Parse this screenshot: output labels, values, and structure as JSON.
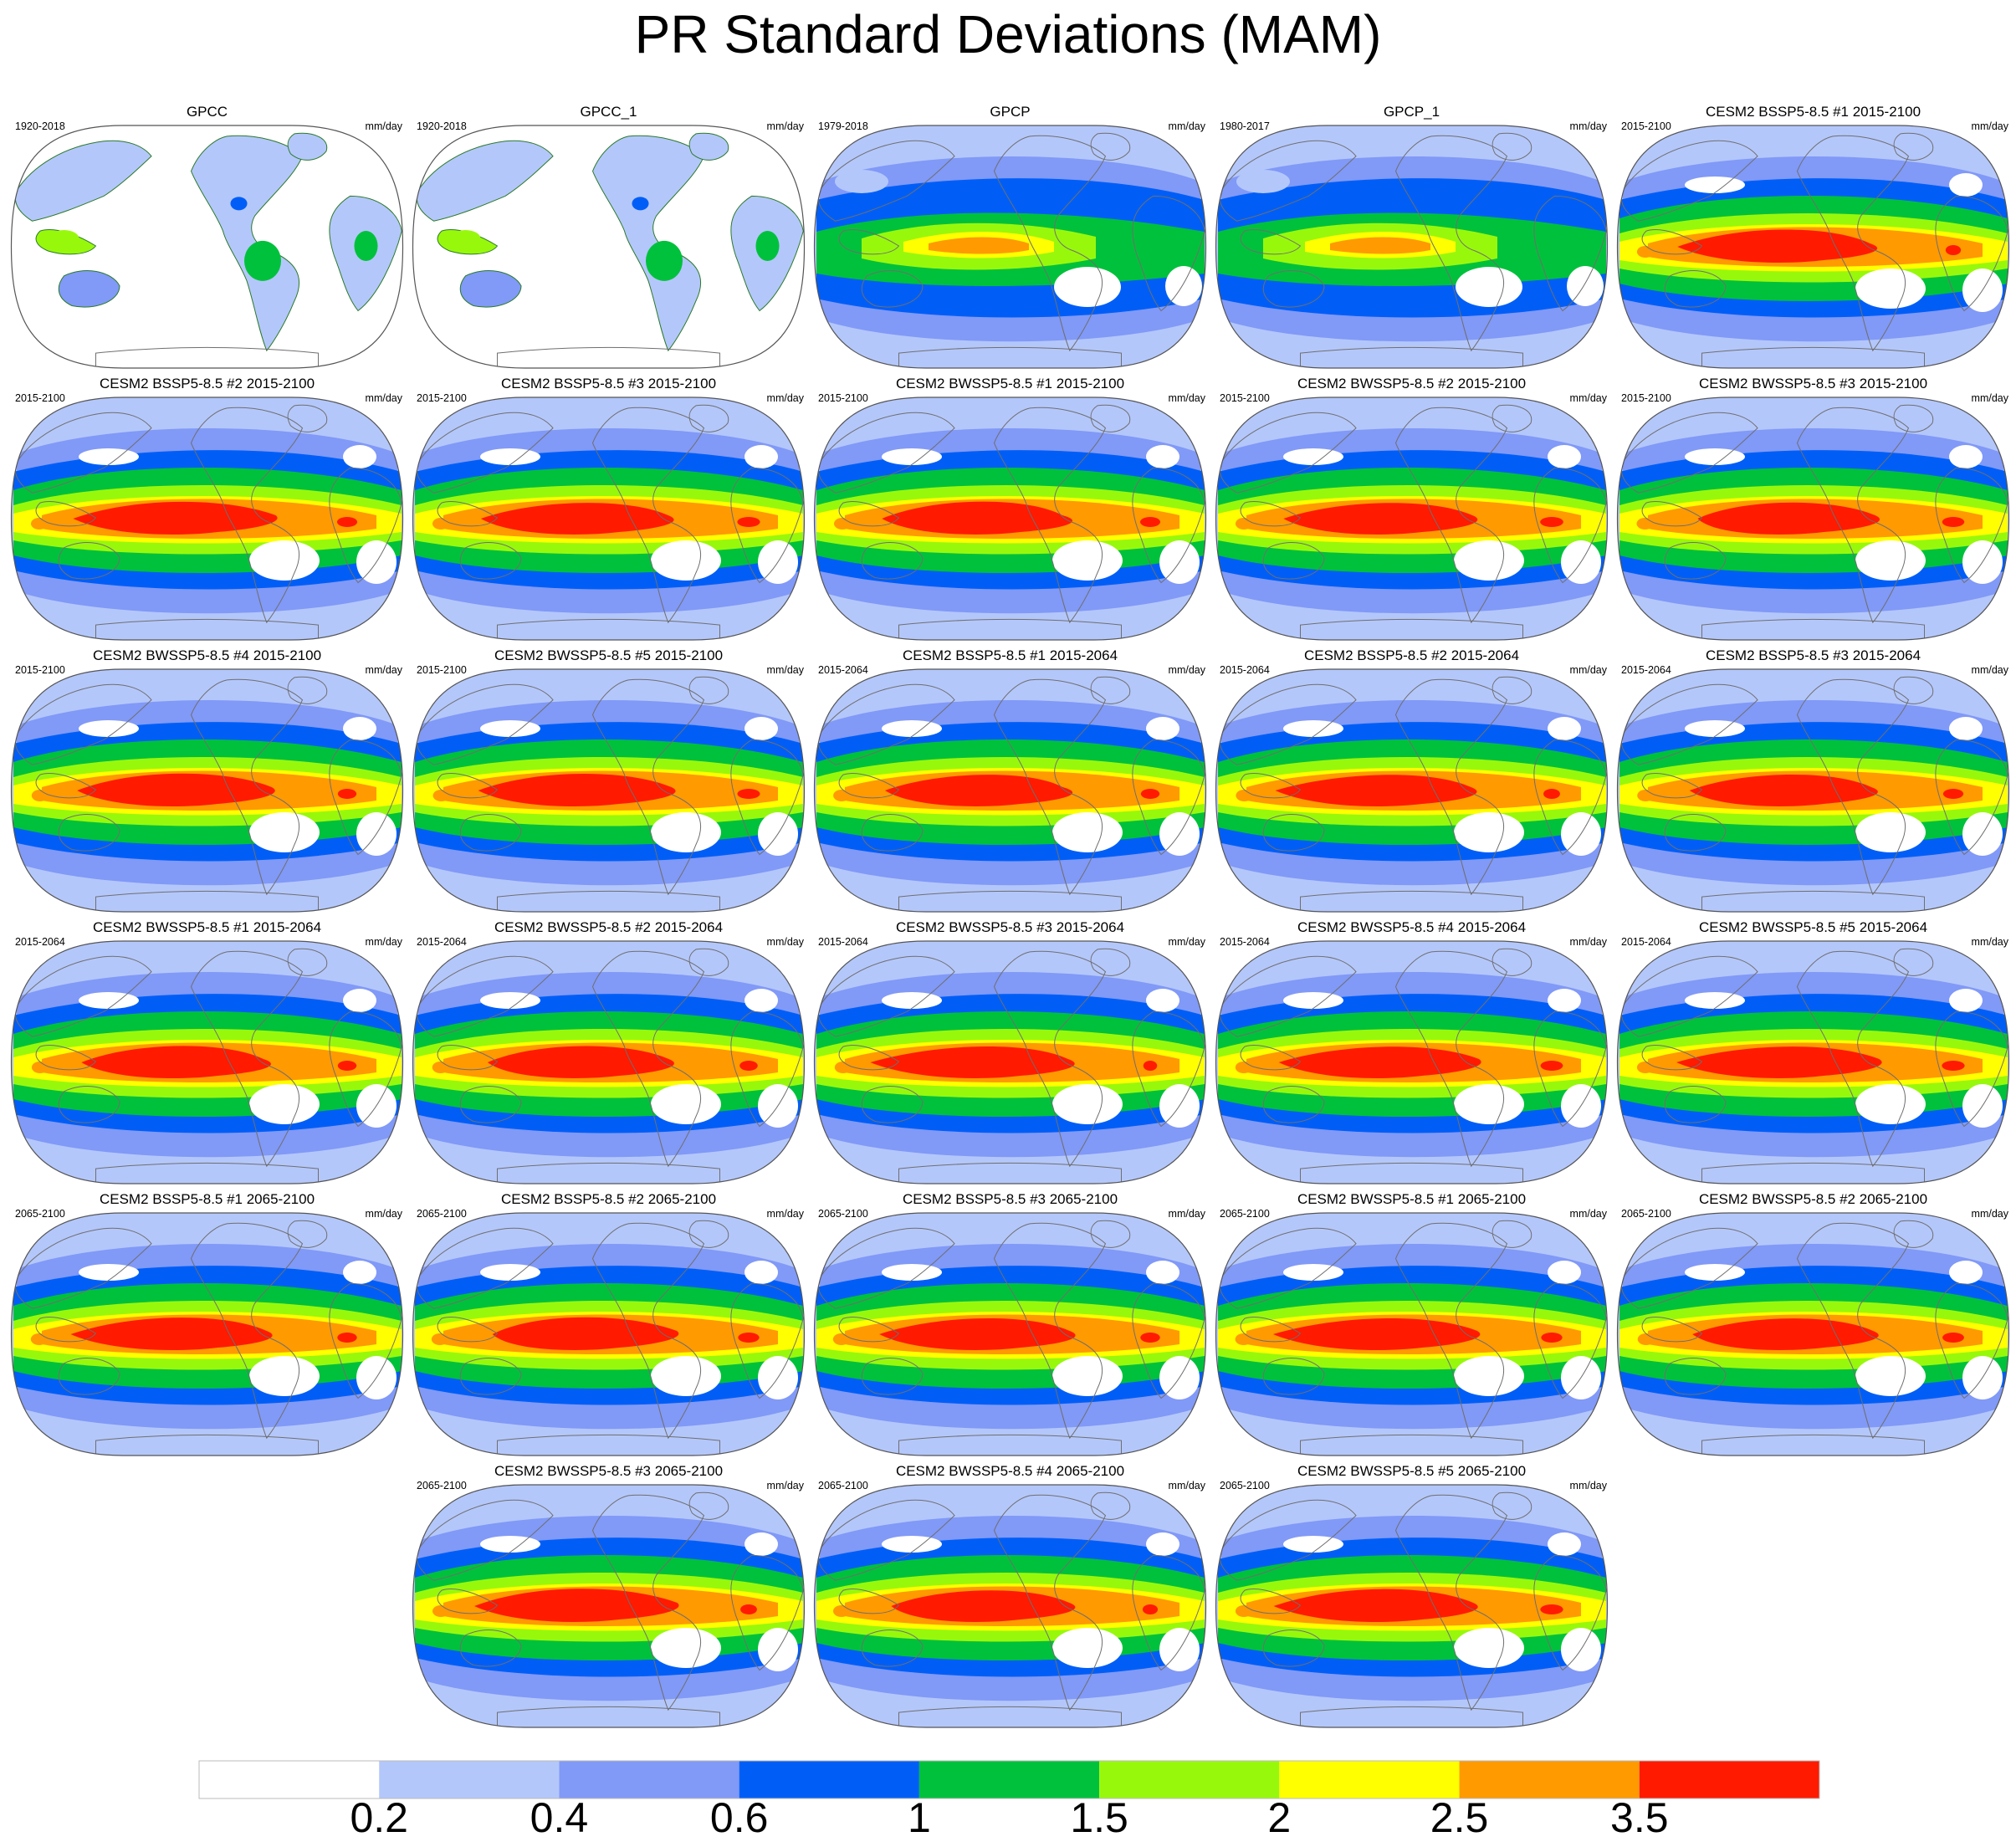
{
  "title": "PR Standard Deviations (MAM)",
  "units": "mm/day",
  "panels": [
    {
      "title": "GPCC",
      "period": "1920-2018",
      "style": "gpcc"
    },
    {
      "title": "GPCC_1",
      "period": "1920-2018",
      "style": "gpcc"
    },
    {
      "title": "GPCP",
      "period": "1979-2018",
      "style": "obs"
    },
    {
      "title": "GPCP_1",
      "period": "1980-2017",
      "style": "obs"
    },
    {
      "title": "CESM2 BSSP5-8.5 #1 2015-2100",
      "period": "2015-2100",
      "style": "model"
    },
    {
      "title": "CESM2 BSSP5-8.5 #2 2015-2100",
      "period": "2015-2100",
      "style": "model"
    },
    {
      "title": "CESM2 BSSP5-8.5 #3 2015-2100",
      "period": "2015-2100",
      "style": "model"
    },
    {
      "title": "CESM2 BWSSP5-8.5 #1 2015-2100",
      "period": "2015-2100",
      "style": "model"
    },
    {
      "title": "CESM2 BWSSP5-8.5 #2 2015-2100",
      "period": "2015-2100",
      "style": "model"
    },
    {
      "title": "CESM2 BWSSP5-8.5 #3 2015-2100",
      "period": "2015-2100",
      "style": "model"
    },
    {
      "title": "CESM2 BWSSP5-8.5 #4 2015-2100",
      "period": "2015-2100",
      "style": "model"
    },
    {
      "title": "CESM2 BWSSP5-8.5 #5 2015-2100",
      "period": "2015-2100",
      "style": "model"
    },
    {
      "title": "CESM2 BSSP5-8.5 #1 2015-2064",
      "period": "2015-2064",
      "style": "model"
    },
    {
      "title": "CESM2 BSSP5-8.5 #2 2015-2064",
      "period": "2015-2064",
      "style": "model"
    },
    {
      "title": "CESM2 BSSP5-8.5 #3 2015-2064",
      "period": "2015-2064",
      "style": "model"
    },
    {
      "title": "CESM2 BWSSP5-8.5 #1 2015-2064",
      "period": "2015-2064",
      "style": "model"
    },
    {
      "title": "CESM2 BWSSP5-8.5 #2 2015-2064",
      "period": "2015-2064",
      "style": "model"
    },
    {
      "title": "CESM2 BWSSP5-8.5 #3 2015-2064",
      "period": "2015-2064",
      "style": "model"
    },
    {
      "title": "CESM2 BWSSP5-8.5 #4 2015-2064",
      "period": "2015-2064",
      "style": "model"
    },
    {
      "title": "CESM2 BWSSP5-8.5 #5 2015-2064",
      "period": "2015-2064",
      "style": "model"
    },
    {
      "title": "CESM2 BSSP5-8.5 #1 2065-2100",
      "period": "2065-2100",
      "style": "model"
    },
    {
      "title": "CESM2 BSSP5-8.5 #2 2065-2100",
      "period": "2065-2100",
      "style": "model"
    },
    {
      "title": "CESM2 BSSP5-8.5 #3 2065-2100",
      "period": "2065-2100",
      "style": "model"
    },
    {
      "title": "CESM2 BWSSP5-8.5 #1 2065-2100",
      "period": "2065-2100",
      "style": "model"
    },
    {
      "title": "CESM2 BWSSP5-8.5 #2 2065-2100",
      "period": "2065-2100",
      "style": "model"
    },
    {
      "title": "CESM2 BWSSP5-8.5 #3 2065-2100",
      "period": "2065-2100",
      "style": "model"
    },
    {
      "title": "CESM2 BWSSP5-8.5 #4 2065-2100",
      "period": "2065-2100",
      "style": "model"
    },
    {
      "title": "CESM2 BWSSP5-8.5 #5 2065-2100",
      "period": "2065-2100",
      "style": "model"
    }
  ],
  "colorbar": {
    "levels": [
      "0.2",
      "0.4",
      "0.6",
      "1",
      "1.5",
      "2",
      "2.5",
      "3.5"
    ],
    "colors": [
      "#ffffff",
      "#b4c7fb",
      "#8199f7",
      "#005ef7",
      "#00c13b",
      "#98f80c",
      "#ffff00",
      "#ff9a00",
      "#ff1a00"
    ]
  },
  "chart_data": {
    "type": "heatmap",
    "title": "PR Standard Deviations (MAM)",
    "units": "mm/day",
    "contour_levels": [
      0.2,
      0.4,
      0.6,
      1,
      1.5,
      2,
      2.5,
      3.5
    ],
    "colors": [
      "#ffffff",
      "#b4c7fb",
      "#8199f7",
      "#005ef7",
      "#00c13b",
      "#98f80c",
      "#ffff00",
      "#ff9a00",
      "#ff1a00"
    ],
    "panel_count": 28
  }
}
